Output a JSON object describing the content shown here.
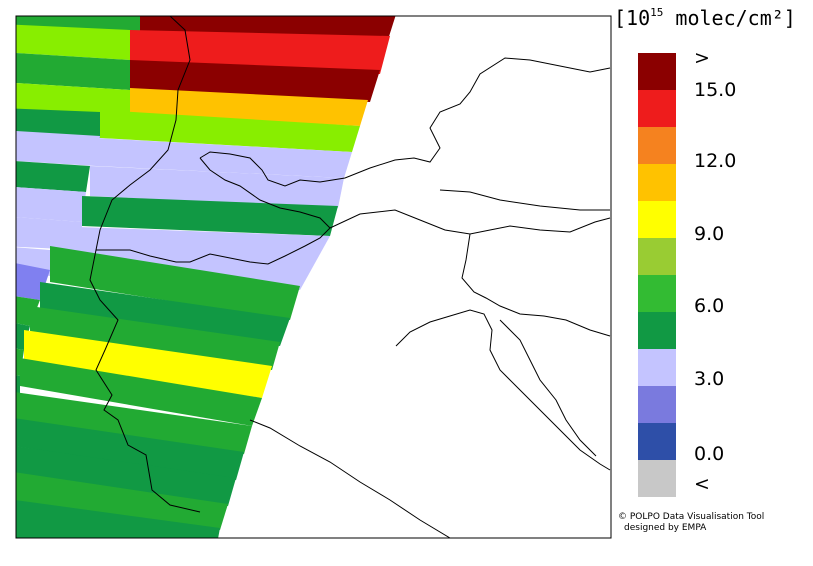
{
  "legend": {
    "title_open": "[10",
    "title_exp": "15",
    "title_unit": " molec/cm²]",
    "labels": [
      ">",
      "15.0",
      "12.0",
      "9.0",
      "6.0",
      "3.0",
      "0.0",
      "<"
    ],
    "colors": [
      "#8b0000",
      "#ee1c1c",
      "#f5821f",
      "#ffc200",
      "#ffff00",
      "#99cc33",
      "#33bb33",
      "#119944",
      "#c4c4ff",
      "#7a7ade",
      "#2e4fa8",
      "#c8c8c8"
    ]
  },
  "credit": {
    "line1": "© POLPO Data Visualisation Tool",
    "line2": "designed by EMPA"
  }
}
